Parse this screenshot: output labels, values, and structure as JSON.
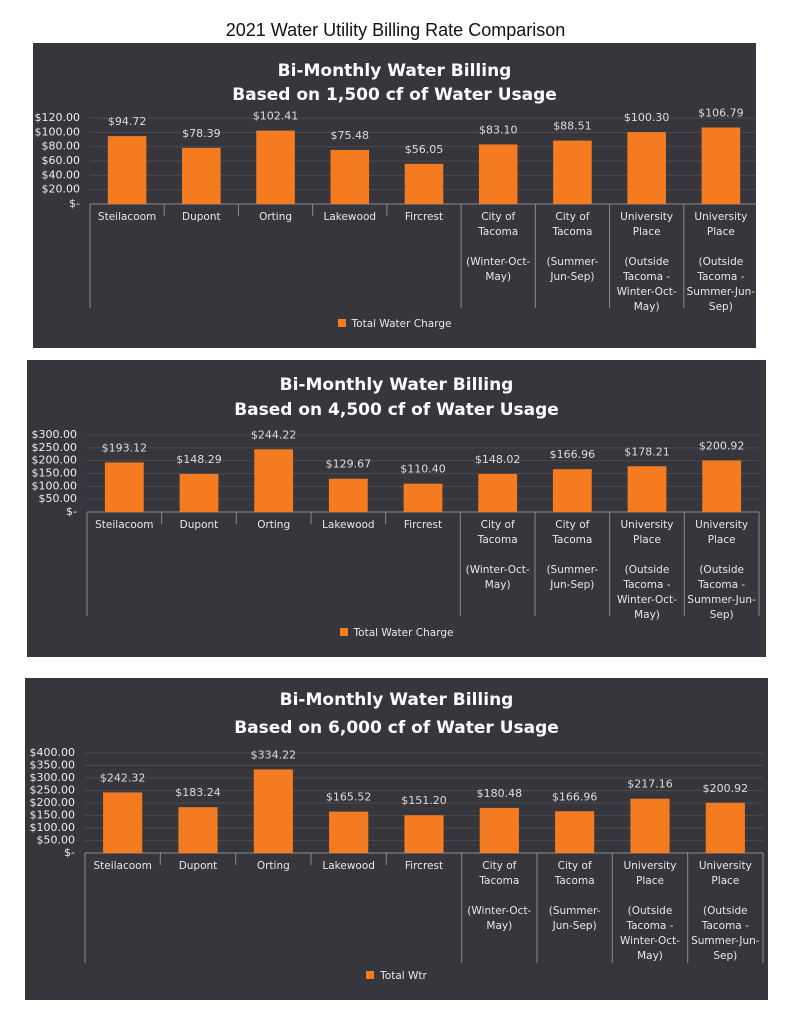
{
  "title": "2021 Water Utility Billing Rate Comparison",
  "chart_data": [
    {
      "type": "bar",
      "title": "Bi-Monthly Water Billing",
      "subtitle": "Based on 1,500 cf of Water Usage",
      "categories": [
        "Steilacoom",
        "Dupont",
        "Orting",
        "Lakewood",
        "Fircrest",
        "City of Tacoma\n\n(Winter-Oct-May)",
        "City of Tacoma\n\n(Summer-Jun-Sep)",
        "University Place\n\n(Outside Tacoma - Winter-Oct-May)",
        "University Place\n\n(Outside Tacoma - Summer-Jun-Sep)"
      ],
      "series": [
        {
          "name": "Total Water Charge",
          "color": "#f47b20",
          "values": [
            94.72,
            78.39,
            102.41,
            75.48,
            56.05,
            83.1,
            88.51,
            100.3,
            106.79
          ],
          "value_labels": [
            "$94.72",
            "$78.39",
            "$102.41",
            "$75.48",
            "$56.05",
            "$83.10",
            "$88.51",
            "$100.30",
            "$106.79"
          ]
        }
      ],
      "ylim": [
        0,
        120
      ],
      "yticks": [
        {
          "value": 0,
          "label": "$-"
        },
        {
          "value": 20,
          "label": "$20.00"
        },
        {
          "value": 40,
          "label": "$40.00"
        },
        {
          "value": 60,
          "label": "$60.00"
        },
        {
          "value": 80,
          "label": "$80.00"
        },
        {
          "value": 100,
          "label": "$100.00"
        },
        {
          "value": 120,
          "label": "$120.00"
        }
      ],
      "grid": true,
      "legend": "bottom"
    },
    {
      "type": "bar",
      "title": "Bi-Monthly Water Billing",
      "subtitle": "Based on 4,500 cf of Water Usage",
      "categories": [
        "Steilacoom",
        "Dupont",
        "Orting",
        "Lakewood",
        "Fircrest",
        "City of Tacoma\n\n(Winter-Oct-May)",
        "City of Tacoma\n\n(Summer-Jun-Sep)",
        "University Place\n\n(Outside Tacoma - Winter-Oct-May)",
        "University Place\n\n(Outside Tacoma - Summer-Jun-Sep)"
      ],
      "series": [
        {
          "name": "Total Water Charge",
          "color": "#f47b20",
          "values": [
            193.12,
            148.29,
            244.22,
            129.67,
            110.4,
            148.02,
            166.96,
            178.21,
            200.92
          ],
          "value_labels": [
            "$193.12",
            "$148.29",
            "$244.22",
            "$129.67",
            "$110.40",
            "$148.02",
            "$166.96",
            "$178.21",
            "$200.92"
          ]
        }
      ],
      "ylim": [
        0,
        300
      ],
      "yticks": [
        {
          "value": 0,
          "label": "$-"
        },
        {
          "value": 50,
          "label": "$50.00"
        },
        {
          "value": 100,
          "label": "$100.00"
        },
        {
          "value": 150,
          "label": "$150.00"
        },
        {
          "value": 200,
          "label": "$200.00"
        },
        {
          "value": 250,
          "label": "$250.00"
        },
        {
          "value": 300,
          "label": "$300.00"
        }
      ],
      "grid": true,
      "legend": "bottom"
    },
    {
      "type": "bar",
      "title": "Bi-Monthly Water Billing",
      "subtitle": "Based on 6,000 cf of Water Usage",
      "categories": [
        "Steilacoom",
        "Dupont",
        "Orting",
        "Lakewood",
        "Fircrest",
        "City of Tacoma\n\n(Winter-Oct-May)",
        "City of Tacoma\n\n(Summer-Jun-Sep)",
        "University Place\n\n(Outside Tacoma - Winter-Oct-May)",
        "University Place\n\n(Outside Tacoma - Summer-Jun-Sep)"
      ],
      "series": [
        {
          "name": "Total Wtr",
          "color": "#f47b20",
          "values": [
            242.32,
            183.24,
            334.22,
            165.52,
            151.2,
            180.48,
            166.96,
            217.16,
            200.92
          ],
          "value_labels": [
            "$242.32",
            "$183.24",
            "$334.22",
            "$165.52",
            "$151.20",
            "$180.48",
            "$166.96",
            "$217.16",
            "$200.92"
          ]
        }
      ],
      "ylim": [
        0,
        400
      ],
      "yticks": [
        {
          "value": 0,
          "label": "$-"
        },
        {
          "value": 50,
          "label": "$50.00"
        },
        {
          "value": 100,
          "label": "$100.00"
        },
        {
          "value": 150,
          "label": "$150.00"
        },
        {
          "value": 200,
          "label": "$200.00"
        },
        {
          "value": 250,
          "label": "$250.00"
        },
        {
          "value": 300,
          "label": "$300.00"
        },
        {
          "value": 350,
          "label": "$350.00"
        },
        {
          "value": 400,
          "label": "$400.00"
        }
      ],
      "grid": true,
      "legend": "bottom"
    }
  ]
}
